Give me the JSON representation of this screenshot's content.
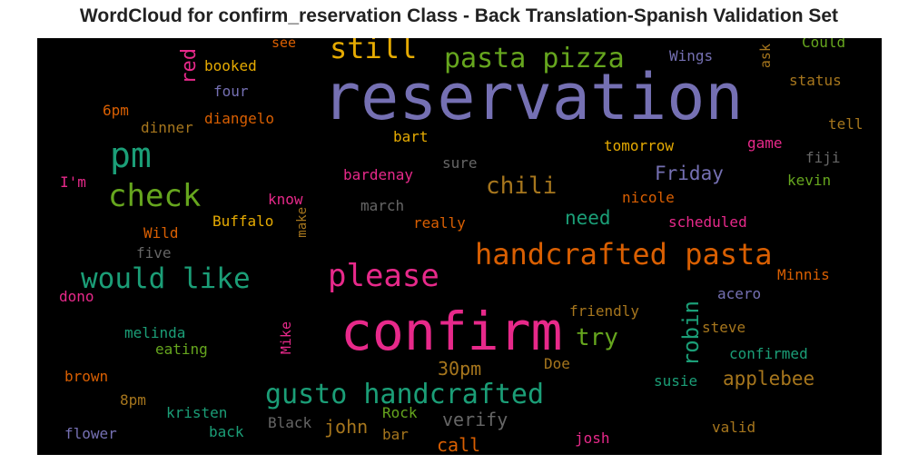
{
  "title": "WordCloud for confirm_reservation Class - Back Translation-Spanish Validation Set",
  "chart_data": {
    "type": "wordcloud",
    "background": "#000000",
    "words": [
      {
        "text": "reservation",
        "size": 70,
        "color": "#7570b3"
      },
      {
        "text": "confirm",
        "size": 58,
        "color": "#e7298a"
      },
      {
        "text": "pm",
        "size": 38,
        "color": "#1b9e77"
      },
      {
        "text": "check",
        "size": 34,
        "color": "#66a61e"
      },
      {
        "text": "handcrafted pasta",
        "size": 32,
        "color": "#d95f02"
      },
      {
        "text": "please",
        "size": 34,
        "color": "#e7298a"
      },
      {
        "text": "would like",
        "size": 31,
        "color": "#1b9e77"
      },
      {
        "text": "gusto handcrafted",
        "size": 30,
        "color": "#1b9e77"
      },
      {
        "text": "pasta pizza",
        "size": 30,
        "color": "#66a61e"
      },
      {
        "text": "still",
        "size": 32,
        "color": "#e6ab02"
      },
      {
        "text": "chili",
        "size": 26,
        "color": "#a6761d"
      },
      {
        "text": "try",
        "size": 26,
        "color": "#66a61e"
      },
      {
        "text": "robin",
        "size": 24,
        "color": "#1b9e77",
        "vertical": true
      },
      {
        "text": "red",
        "size": 22,
        "color": "#e7298a",
        "vertical": true
      },
      {
        "text": "Friday",
        "size": 21,
        "color": "#7570b3"
      },
      {
        "text": "need",
        "size": 21,
        "color": "#1b9e77"
      },
      {
        "text": "applebee",
        "size": 21,
        "color": "#a6761d"
      },
      {
        "text": "30pm",
        "size": 20,
        "color": "#a6761d"
      },
      {
        "text": "verify",
        "size": 20,
        "color": "#666666"
      },
      {
        "text": "john",
        "size": 20,
        "color": "#a6761d"
      },
      {
        "text": "call",
        "size": 20,
        "color": "#d95f02"
      },
      {
        "text": "Wings",
        "size": 16,
        "color": "#7570b3"
      },
      {
        "text": "Could",
        "size": 16,
        "color": "#66a61e"
      },
      {
        "text": "ask",
        "size": 15,
        "color": "#a6761d",
        "vertical": true
      },
      {
        "text": "status",
        "size": 16,
        "color": "#a6761d"
      },
      {
        "text": "tell",
        "size": 16,
        "color": "#a6761d"
      },
      {
        "text": "see",
        "size": 15,
        "color": "#d95f02"
      },
      {
        "text": "booked",
        "size": 16,
        "color": "#e6ab02"
      },
      {
        "text": "four",
        "size": 16,
        "color": "#7570b3"
      },
      {
        "text": "6pm",
        "size": 16,
        "color": "#d95f02"
      },
      {
        "text": "diangelo",
        "size": 16,
        "color": "#d95f02"
      },
      {
        "text": "dinner",
        "size": 16,
        "color": "#a6761d"
      },
      {
        "text": "bart",
        "size": 16,
        "color": "#e6ab02"
      },
      {
        "text": "tomorrow",
        "size": 16,
        "color": "#e6ab02"
      },
      {
        "text": "game",
        "size": 16,
        "color": "#e7298a"
      },
      {
        "text": "fiji",
        "size": 16,
        "color": "#666666"
      },
      {
        "text": "sure",
        "size": 16,
        "color": "#666666"
      },
      {
        "text": "I'm",
        "size": 16,
        "color": "#e7298a"
      },
      {
        "text": "bardenay",
        "size": 16,
        "color": "#e7298a"
      },
      {
        "text": "kevin",
        "size": 16,
        "color": "#66a61e"
      },
      {
        "text": "know",
        "size": 16,
        "color": "#e7298a"
      },
      {
        "text": "nicole",
        "size": 16,
        "color": "#d95f02"
      },
      {
        "text": "march",
        "size": 16,
        "color": "#666666"
      },
      {
        "text": "scheduled",
        "size": 16,
        "color": "#e7298a"
      },
      {
        "text": "Buffalo",
        "size": 16,
        "color": "#e6ab02"
      },
      {
        "text": "really",
        "size": 16,
        "color": "#d95f02"
      },
      {
        "text": "make",
        "size": 14,
        "color": "#a6761d",
        "vertical": true
      },
      {
        "text": "Wild",
        "size": 16,
        "color": "#d95f02"
      },
      {
        "text": "five",
        "size": 16,
        "color": "#666666"
      },
      {
        "text": "Minnis",
        "size": 16,
        "color": "#d95f02"
      },
      {
        "text": "dono",
        "size": 16,
        "color": "#e7298a"
      },
      {
        "text": "acero",
        "size": 16,
        "color": "#7570b3"
      },
      {
        "text": "friendly",
        "size": 16,
        "color": "#a6761d"
      },
      {
        "text": "melinda",
        "size": 16,
        "color": "#1b9e77"
      },
      {
        "text": "Mike",
        "size": 15,
        "color": "#e7298a",
        "vertical": true
      },
      {
        "text": "steve",
        "size": 16,
        "color": "#a6761d"
      },
      {
        "text": "eating",
        "size": 16,
        "color": "#66a61e"
      },
      {
        "text": "confirmed",
        "size": 16,
        "color": "#1b9e77"
      },
      {
        "text": "brown",
        "size": 16,
        "color": "#d95f02"
      },
      {
        "text": "Doe",
        "size": 16,
        "color": "#a6761d"
      },
      {
        "text": "susie",
        "size": 16,
        "color": "#1b9e77"
      },
      {
        "text": "8pm",
        "size": 16,
        "color": "#a6761d"
      },
      {
        "text": "kristen",
        "size": 16,
        "color": "#1b9e77"
      },
      {
        "text": "Rock",
        "size": 16,
        "color": "#66a61e"
      },
      {
        "text": "Black",
        "size": 16,
        "color": "#666666"
      },
      {
        "text": "flower",
        "size": 16,
        "color": "#7570b3"
      },
      {
        "text": "back",
        "size": 16,
        "color": "#1b9e77"
      },
      {
        "text": "bar",
        "size": 16,
        "color": "#a6761d"
      },
      {
        "text": "josh",
        "size": 16,
        "color": "#e7298a"
      },
      {
        "text": "valid",
        "size": 16,
        "color": "#a6761d"
      }
    ]
  }
}
